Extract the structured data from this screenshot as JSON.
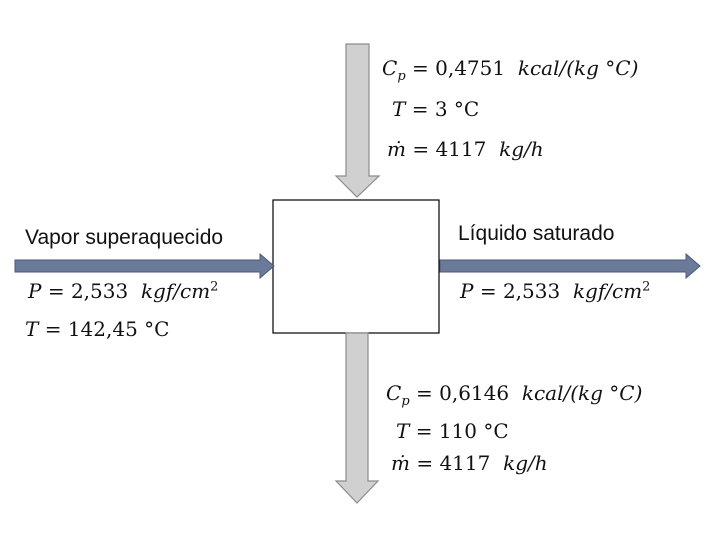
{
  "inputs": {
    "vapor": {
      "label": "Vapor superaquecido",
      "pressure": {
        "symbol": "P",
        "value": "2,533",
        "unit": "kgf/cm",
        "exponent": "2"
      },
      "temperature": {
        "symbol": "T",
        "value": "142,45",
        "unit": "°C"
      }
    },
    "top_stream": {
      "cp": {
        "symbol": "C",
        "subscript": "p",
        "value": "0,4751",
        "unit": "kcal/(kg °C)"
      },
      "temperature": {
        "symbol": "T",
        "value": "3",
        "unit": "°C"
      },
      "mass_flow": {
        "symbol": "ṁ",
        "value": "4117",
        "unit": "kg/h"
      }
    }
  },
  "outputs": {
    "liquid": {
      "label": "Líquido saturado",
      "pressure": {
        "symbol": "P",
        "value": "2,533",
        "unit": "kgf/cm",
        "exponent": "2"
      }
    },
    "bottom_stream": {
      "cp": {
        "symbol": "C",
        "subscript": "p",
        "value": "0,6146",
        "unit": "kcal/(kg °C)"
      },
      "temperature": {
        "symbol": "T",
        "value": "110",
        "unit": "°C"
      },
      "mass_flow": {
        "symbol": "ṁ",
        "value": "4117",
        "unit": "kg/h"
      }
    }
  },
  "colors": {
    "horizontal_arrow_fill": "#6b7a99",
    "horizontal_arrow_stroke": "#4a5a7a",
    "vertical_arrow_fill": "#d0d0d0",
    "vertical_arrow_stroke": "#8c8c8c",
    "box_stroke": "#000000"
  }
}
